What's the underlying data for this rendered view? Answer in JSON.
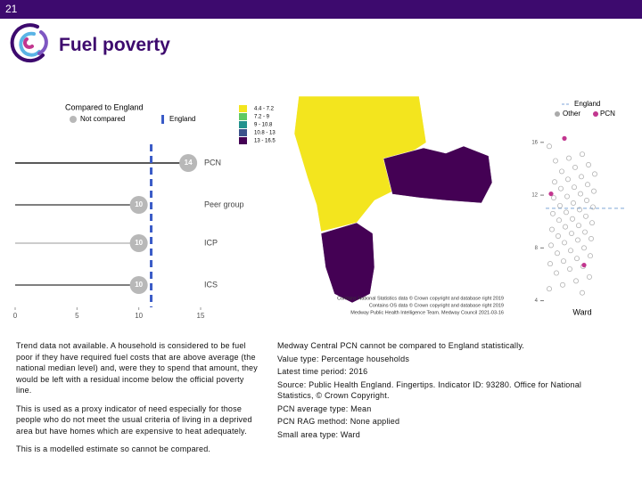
{
  "page_number": "21",
  "title": "Fuel poverty",
  "chart_data": [
    {
      "type": "dot",
      "title": "Compared to England",
      "legend": [
        {
          "name": "Not compared",
          "color": "#b8b8b8"
        },
        {
          "name": "England",
          "color": "#3a5bc7"
        }
      ],
      "categories": [
        "PCN",
        "Peer group",
        "ICP",
        "ICS"
      ],
      "values": [
        14,
        10,
        10,
        10
      ],
      "line_colors": [
        "#222222",
        "#555555",
        "#bbbbbb",
        "#555555"
      ],
      "reference": {
        "name": "England",
        "value": 11
      },
      "xlim": [
        0,
        15
      ],
      "xticks": [
        0,
        5,
        10,
        15
      ]
    },
    {
      "type": "map",
      "legend": {
        "labels": [
          "4.4 - 7.2",
          "7.2 - 9",
          "9 - 10.8",
          "10.8 - 13",
          "13 - 16.5"
        ],
        "colors": [
          "#f3e51e",
          "#5ec962",
          "#21918c",
          "#3b528b",
          "#440154"
        ]
      },
      "credits": [
        "Contains National Statistics data © Crown copyright and database right 2019",
        "Contains OS data © Crown copyright and database right 2019",
        "Medway Public Health Intelligence Team. Medway Council 2021-03-16"
      ]
    },
    {
      "type": "strip",
      "xlabel": "Ward",
      "reference": {
        "name": "England",
        "value": 11
      },
      "series": [
        {
          "name": "Other",
          "color": "#aaaaaa",
          "values": [
            15.7,
            15.1,
            14.8,
            14.6,
            14.3,
            14.1,
            13.8,
            13.6,
            13.4,
            13.2,
            13.0,
            12.8,
            12.6,
            12.5,
            12.3,
            12.1,
            11.9,
            11.8,
            11.6,
            11.4,
            11.2,
            11.1,
            10.9,
            10.7,
            10.6,
            10.4,
            10.2,
            10.1,
            9.9,
            9.7,
            9.6,
            9.4,
            9.2,
            9.1,
            8.9,
            8.7,
            8.6,
            8.4,
            8.2,
            8.0,
            7.8,
            7.6,
            7.4,
            7.2,
            7.0,
            6.8,
            6.6,
            6.4,
            6.1,
            5.8,
            5.5,
            5.2,
            4.9,
            4.6
          ]
        },
        {
          "name": "PCN",
          "color": "#c2368f",
          "values": [
            16.3,
            12.1,
            6.7
          ]
        }
      ],
      "ylim": [
        3.5,
        17
      ],
      "yticks": [
        4,
        8,
        12,
        16
      ]
    }
  ],
  "notes_left": [
    "Trend data not available. A household is considered to be fuel poor if they have required fuel costs that are above average (the national median level) and, were they to spend that amount, they would be left with a residual income below the official poverty line.",
    "This is used as a proxy indicator of need especially for those people who do not meet the usual criteria of living in a deprived area but have homes which are expensive to heat adequately.",
    "This is a modelled estimate so cannot be compared."
  ],
  "notes_right": [
    "Medway Central PCN cannot be compared to England statistically.",
    "Value type: Percentage households",
    "Latest time period: 2016",
    "Source: Public Health England. Fingertips. Indicator ID: 93280. Office for National Statistics, © Crown Copyright.",
    "PCN average type: Mean",
    "PCN RAG method: None applied",
    "Small area type: Ward"
  ]
}
